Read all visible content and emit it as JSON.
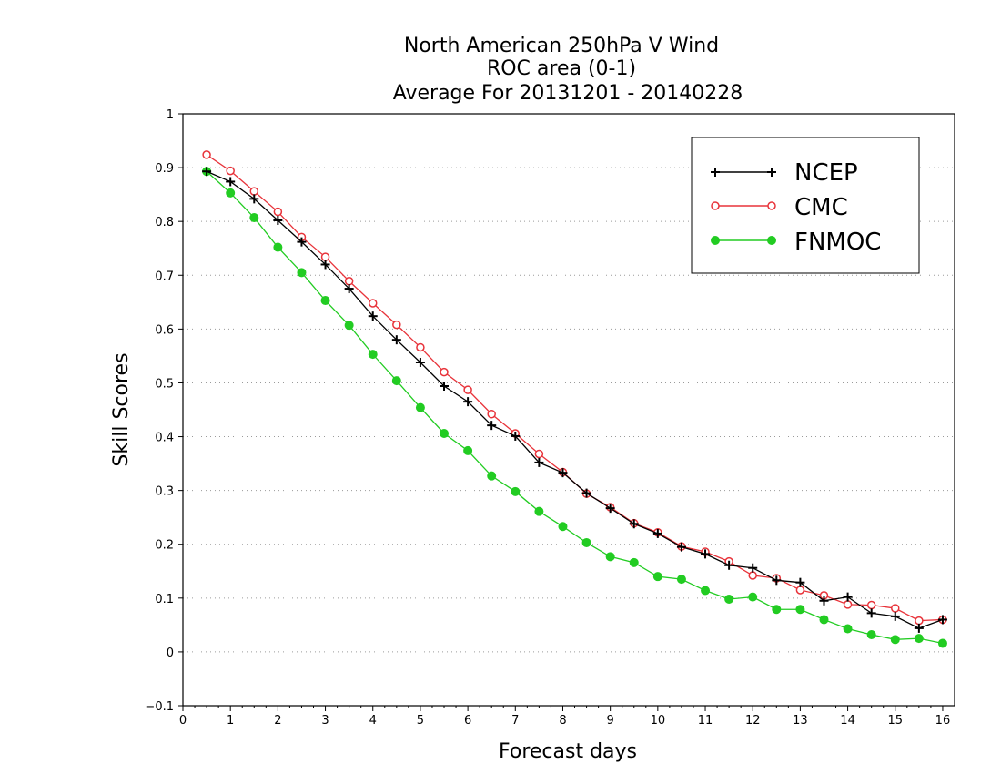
{
  "chart_data": {
    "type": "line",
    "title": [
      "North American 250hPa V Wind",
      "ROC area (0-1)",
      "Average For 20131201 - 20140228"
    ],
    "xlabel": "Forecast days",
    "ylabel": "Skill Scores",
    "xlim": [
      0,
      16.25
    ],
    "ylim": [
      -0.1,
      1
    ],
    "xticks": [
      0,
      1,
      2,
      3,
      4,
      5,
      6,
      7,
      8,
      9,
      10,
      11,
      12,
      13,
      14,
      15,
      16
    ],
    "xtick_labels": [
      "0",
      "1",
      "2",
      "3",
      "4",
      "5",
      "6",
      "7",
      "8",
      "9",
      "10",
      "11",
      "12",
      "13",
      "14",
      "15",
      "16"
    ],
    "yticks": [
      -0.1,
      0,
      0.1,
      0.2,
      0.3,
      0.4,
      0.5,
      0.6,
      0.7,
      0.8,
      0.9,
      1
    ],
    "ytick_labels": [
      "−0.1",
      "0",
      "0.1",
      "0.2",
      "0.3",
      "0.4",
      "0.5",
      "0.6",
      "0.7",
      "0.8",
      "0.9",
      "1"
    ],
    "grid": "horizontal dotted",
    "legend_position": "top-right",
    "x": [
      0.5,
      1.0,
      1.5,
      2.0,
      2.5,
      3.0,
      3.5,
      4.0,
      4.5,
      5.0,
      5.5,
      6.0,
      6.5,
      7.0,
      7.5,
      8.0,
      8.5,
      9.0,
      9.5,
      10.0,
      10.5,
      11.0,
      11.5,
      12.0,
      12.5,
      13.0,
      13.5,
      14.0,
      14.5,
      15.0,
      15.5,
      16.0
    ],
    "series": [
      {
        "name": "NCEP",
        "color": "#000000",
        "marker": "plus",
        "values": [
          0.893,
          0.874,
          0.842,
          0.802,
          0.762,
          0.72,
          0.675,
          0.624,
          0.58,
          0.538,
          0.494,
          0.465,
          0.421,
          0.401,
          0.352,
          0.333,
          0.295,
          0.267,
          0.238,
          0.22,
          0.195,
          0.182,
          0.161,
          0.156,
          0.133,
          0.129,
          0.095,
          0.102,
          0.072,
          0.066,
          0.044,
          0.06
        ]
      },
      {
        "name": "CMC",
        "color": "#e8333a",
        "marker": "open-circle",
        "values": [
          0.924,
          0.894,
          0.856,
          0.818,
          0.771,
          0.734,
          0.689,
          0.648,
          0.608,
          0.566,
          0.52,
          0.487,
          0.442,
          0.406,
          0.368,
          0.334,
          0.294,
          0.269,
          0.239,
          0.222,
          0.196,
          0.186,
          0.168,
          0.142,
          0.137,
          0.115,
          0.105,
          0.088,
          0.087,
          0.081,
          0.058,
          0.06
        ]
      },
      {
        "name": "FNMOC",
        "color": "#22cc22",
        "marker": "filled-circle",
        "values": [
          0.893,
          0.853,
          0.807,
          0.752,
          0.705,
          0.653,
          0.607,
          0.553,
          0.504,
          0.454,
          0.406,
          0.374,
          0.327,
          0.298,
          0.261,
          0.233,
          0.203,
          0.177,
          0.166,
          0.14,
          0.135,
          0.114,
          0.098,
          0.102,
          0.079,
          0.079,
          0.06,
          0.043,
          0.032,
          0.023,
          0.025,
          0.016
        ]
      }
    ]
  }
}
